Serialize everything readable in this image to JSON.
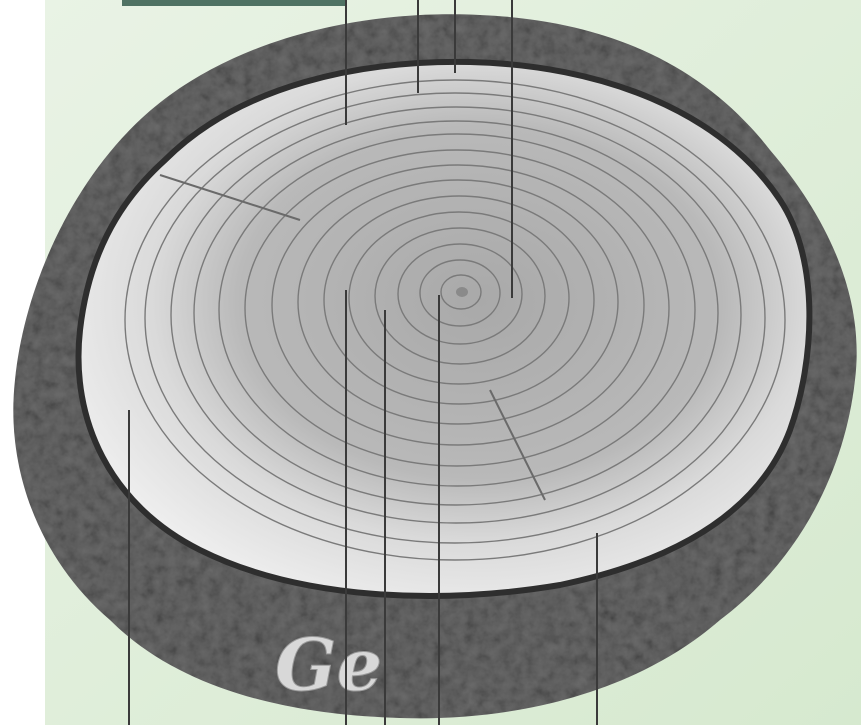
{
  "carving": "Ge"
}
